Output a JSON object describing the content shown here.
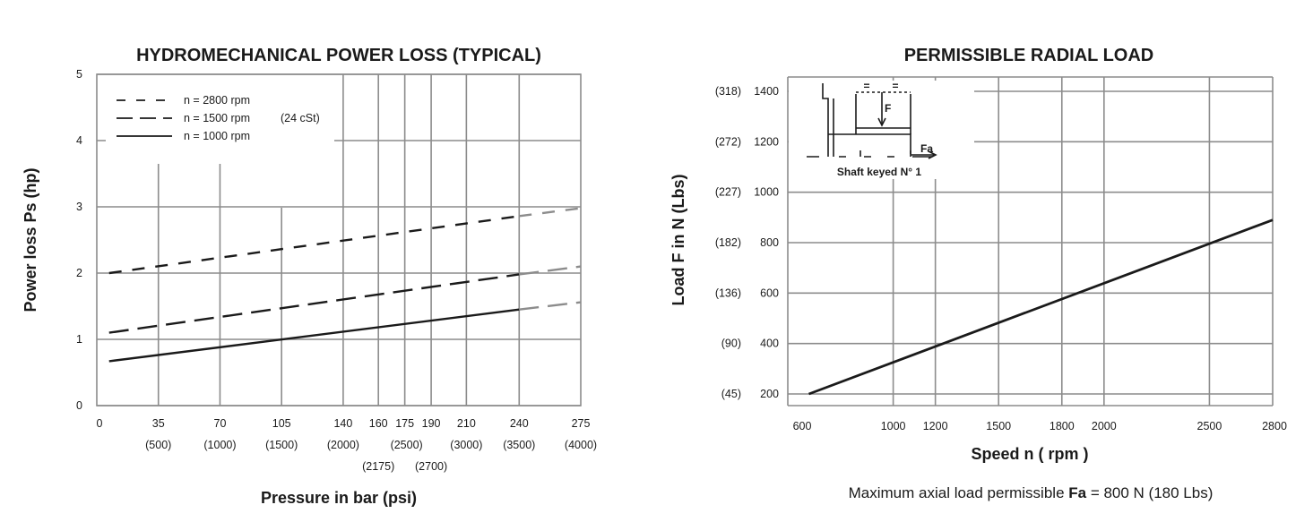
{
  "chart_data": [
    {
      "type": "line",
      "title": "HYDROMECHANICAL POWER LOSS (TYPICAL)",
      "xlabel": "Pressure in bar (psi)",
      "ylabel": "Power loss Ps (hp)",
      "xlim": [
        0,
        275
      ],
      "ylim": [
        0,
        5
      ],
      "grid": true,
      "legend_placement": "top-left",
      "legend_note": "(24 cSt)",
      "y_ticks": [
        "0",
        "1",
        "2",
        "3",
        "4",
        "5"
      ],
      "x_ticks": [
        {
          "bar": "0",
          "psi": ""
        },
        {
          "bar": "35",
          "psi": "(500)"
        },
        {
          "bar": "70",
          "psi": "(1000)"
        },
        {
          "bar": "105",
          "psi": "(1500)"
        },
        {
          "bar": "140",
          "psi": "(2000)"
        },
        {
          "bar": "160",
          "psi": "(2175)"
        },
        {
          "bar": "175",
          "psi": "(2500)"
        },
        {
          "bar": "190",
          "psi": "(2700)"
        },
        {
          "bar": "210",
          "psi": "(3000)"
        },
        {
          "bar": "240",
          "psi": "(3500)"
        },
        {
          "bar": "275",
          "psi": "(4000)"
        }
      ],
      "series": [
        {
          "name": "n = 2800 rpm",
          "style": "dash-short",
          "x": [
            7,
            240,
            275
          ],
          "values": [
            2.0,
            2.86,
            2.98
          ]
        },
        {
          "name": "n = 1500 rpm",
          "style": "dash-long",
          "x": [
            7,
            240,
            275
          ],
          "values": [
            1.1,
            1.98,
            2.1
          ]
        },
        {
          "name": "n = 1000 rpm",
          "style": "solid",
          "x": [
            7,
            240,
            275
          ],
          "values": [
            0.67,
            1.45,
            1.56
          ]
        }
      ],
      "extrapolation_from_x": 240
    },
    {
      "type": "line",
      "title": "PERMISSIBLE  RADIAL  LOAD",
      "xlabel": "Speed n ( rpm )",
      "ylabel": "Load F in N (Lbs)",
      "xlim": [
        600,
        2800
      ],
      "ylim": [
        200,
        1400
      ],
      "grid": true,
      "x_ticks": [
        "600",
        "1000",
        "1200",
        "1500",
        "1800",
        "2000",
        "2500",
        "2800"
      ],
      "y_ticks": [
        {
          "n": "200",
          "lbs": "(45)"
        },
        {
          "n": "400",
          "lbs": "(90)"
        },
        {
          "n": "600",
          "lbs": "(136)"
        },
        {
          "n": "800",
          "lbs": "(182)"
        },
        {
          "n": "1000",
          "lbs": "(227)"
        },
        {
          "n": "1200",
          "lbs": "(272)"
        },
        {
          "n": "1400",
          "lbs": "(318)"
        }
      ],
      "series": [
        {
          "x": [
            600,
            2800
          ],
          "values": [
            200,
            890
          ]
        }
      ],
      "inset": {
        "caption": "Shaft keyed N° 1",
        "force_label": "F",
        "axial_label": "Fa",
        "equal_marks": [
          "=",
          "="
        ]
      },
      "footnote": {
        "text_before": "Maximum axial load permissible ",
        "bold": "Fa",
        "text_after": " = 800 N (180 Lbs)"
      }
    }
  ],
  "colors": {
    "line": "#1a1a1a",
    "grid": "#8c8c8c",
    "extrapolated": "#8c8c8c"
  }
}
